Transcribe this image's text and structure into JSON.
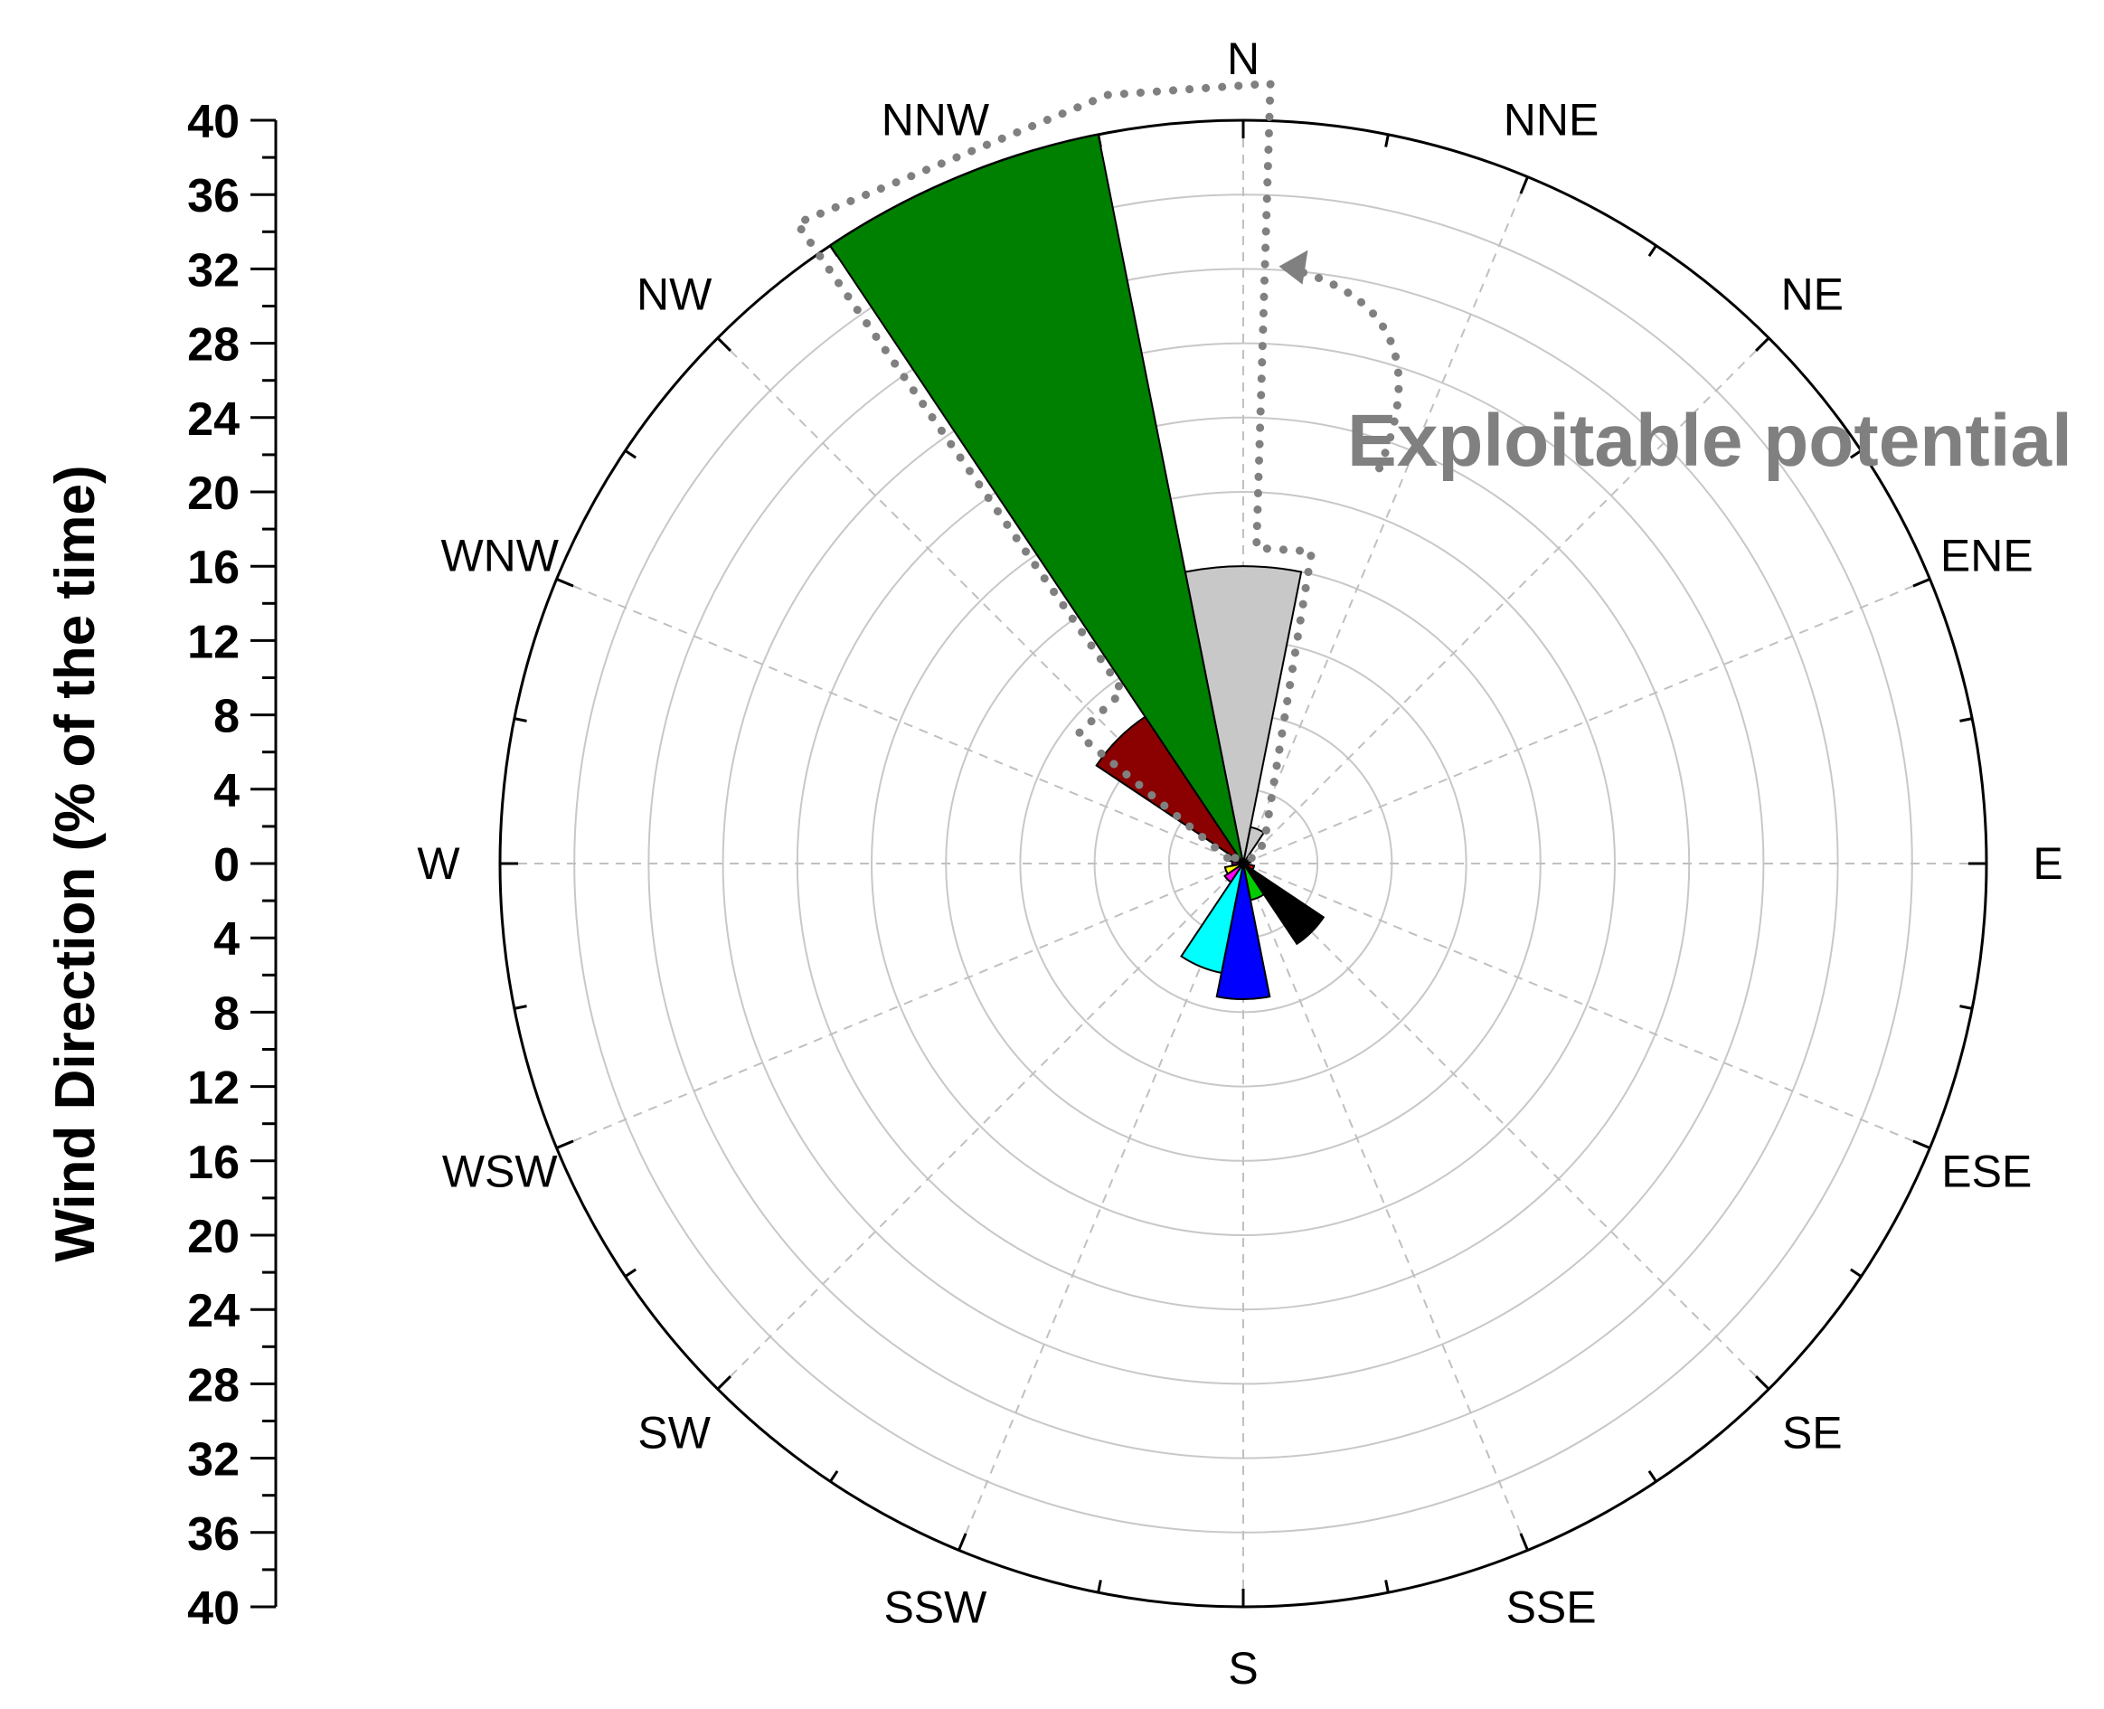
{
  "chart_data": {
    "type": "polar-bar",
    "subtype": "wind-rose",
    "ylabel": "Wind Direction (% of the time)",
    "rlim": [
      0,
      40
    ],
    "y_ticks": [
      "40",
      "36",
      "32",
      "28",
      "24",
      "20",
      "16",
      "12",
      "8",
      "4",
      "0",
      "4",
      "8",
      "12",
      "16",
      "20",
      "24",
      "28",
      "32",
      "36",
      "40"
    ],
    "directions": [
      "N",
      "NNE",
      "NE",
      "ENE",
      "E",
      "ESE",
      "SE",
      "SSE",
      "S",
      "SSW",
      "SW",
      "WSW",
      "W",
      "WNW",
      "NW",
      "NNW"
    ],
    "grid": true,
    "annotation": "Exploitable potential",
    "sectors": [
      {
        "direction": "N",
        "value": 16.0,
        "color": "#c8c8c8"
      },
      {
        "direction": "NNE",
        "value": 2.0,
        "color": "#c8c8c8"
      },
      {
        "direction": "NE",
        "value": 0.6,
        "color": "#c8c8c8"
      },
      {
        "direction": "ENE",
        "value": 0.4,
        "color": "#c8c8c8"
      },
      {
        "direction": "E",
        "value": 0.3,
        "color": "#808080"
      },
      {
        "direction": "ESE",
        "value": 0.6,
        "color": "#ff0000"
      },
      {
        "direction": "SE",
        "value": 5.2,
        "color": "#000000"
      },
      {
        "direction": "SSE",
        "value": 2.0,
        "color": "#00cc00"
      },
      {
        "direction": "S",
        "value": 7.3,
        "color": "#0000ff"
      },
      {
        "direction": "SSW",
        "value": 6.0,
        "color": "#00ffff"
      },
      {
        "direction": "SW",
        "value": 1.2,
        "color": "#ff00ff"
      },
      {
        "direction": "WSW",
        "value": 1.0,
        "color": "#ffff00"
      },
      {
        "direction": "W",
        "value": 0.6,
        "color": "#800080"
      },
      {
        "direction": "WNW",
        "value": 0.8,
        "color": "#ff8c00"
      },
      {
        "direction": "NW",
        "value": 9.5,
        "color": "#8b0000"
      },
      {
        "direction": "NNW",
        "value": 40.0,
        "color": "#008000"
      }
    ],
    "highlight_colors": {
      "outline": "#808080"
    }
  }
}
